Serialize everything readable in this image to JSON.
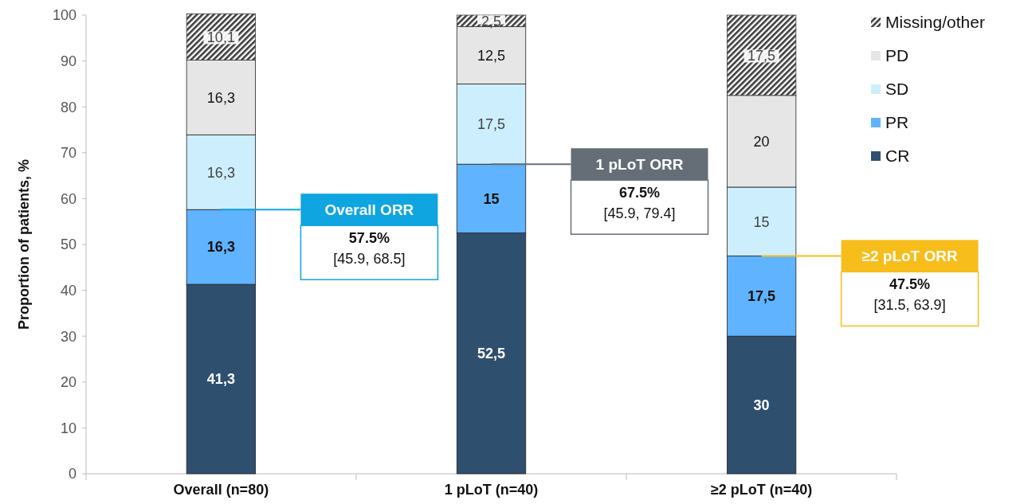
{
  "chart_data": {
    "type": "bar",
    "stacked": true,
    "ylabel": "Proportion of patients, %",
    "categories": [
      "Overall (n=80)",
      "1 pLoT (n=40)",
      "≥2 pLoT (n=40)"
    ],
    "series": [
      {
        "name": "CR",
        "color": "#2f4f6f",
        "values": [
          41.3,
          52.5,
          30
        ],
        "value_labels": [
          "41,3",
          "52,5",
          "30"
        ]
      },
      {
        "name": "PR",
        "color": "#5fb3ff",
        "values": [
          16.3,
          15,
          17.5
        ],
        "value_labels": [
          "16,3",
          "15",
          "17,5"
        ]
      },
      {
        "name": "SD",
        "color": "#cdeefc",
        "values": [
          16.3,
          17.5,
          15
        ],
        "value_labels": [
          "16,3",
          "17,5",
          "15"
        ]
      },
      {
        "name": "PD",
        "color": "#e6e6e6",
        "values": [
          16.3,
          12.5,
          20
        ],
        "value_labels": [
          "16,3",
          "12,5",
          "20"
        ]
      },
      {
        "name": "Missing/other",
        "color": "#3c3c3c",
        "values": [
          10.1,
          2.5,
          17.5
        ],
        "value_labels": [
          "10,1",
          "2,5",
          "17,5"
        ]
      }
    ],
    "ylim": [
      0,
      100
    ],
    "yticks": [
      0,
      10,
      20,
      30,
      40,
      50,
      60,
      70,
      80,
      90,
      100
    ],
    "legend": "top right",
    "annotations": [
      "Overall ORR\n57.5%\n[45.9, 68.5]",
      "1 pLoT ORR\n67.5%\n[45.9, 79.4]",
      "≥2 pLoT ORR\n47.5%\n[31.5, 63.9]"
    ]
  }
}
